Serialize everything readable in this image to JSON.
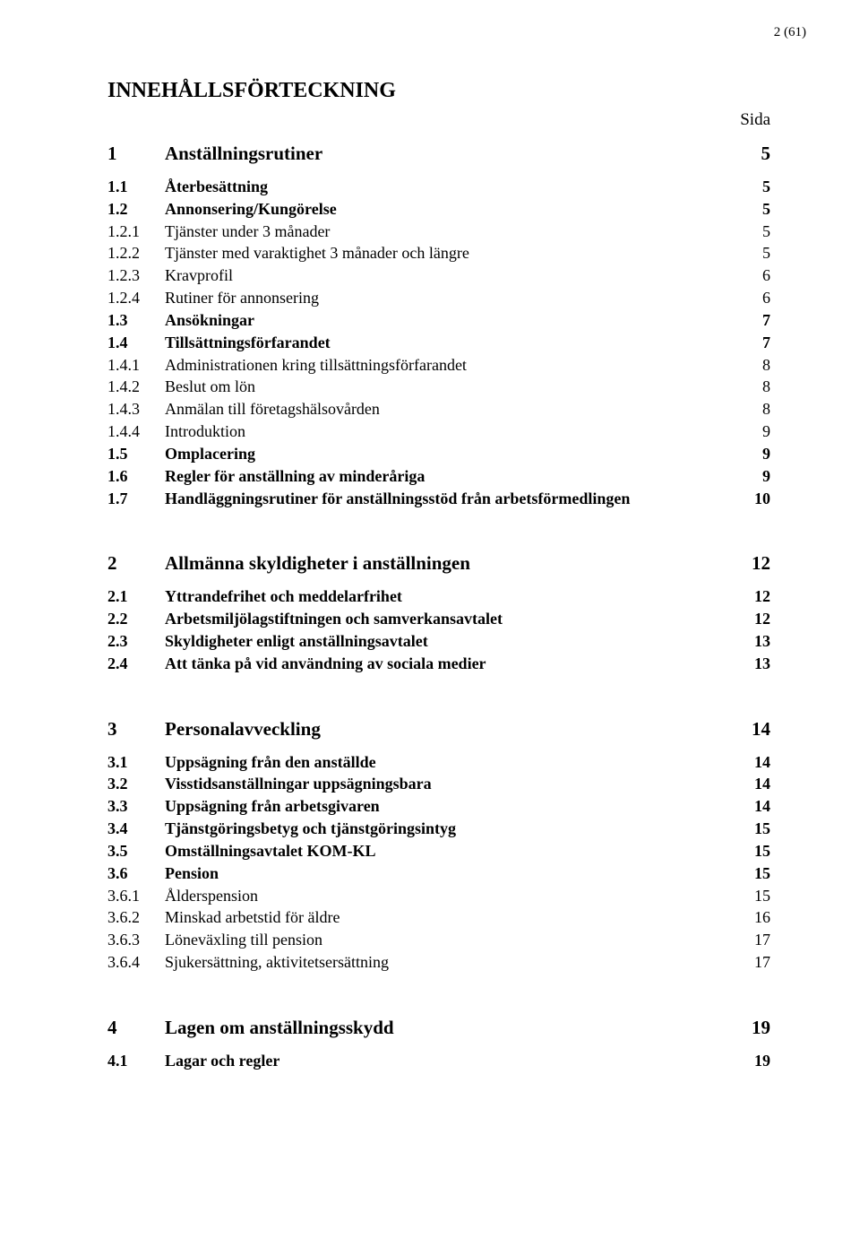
{
  "page_number_label": "2 (61)",
  "doc_title": "INNEHÅLLSFÖRTECKNING",
  "sida_label": "Sida",
  "sections": [
    {
      "head": {
        "num": "1",
        "title": "Anställningsrutiner",
        "page": "5"
      },
      "items": [
        {
          "lvl": 2,
          "num": "1.1",
          "title": "Återbesättning",
          "page": "5"
        },
        {
          "lvl": 2,
          "num": "1.2",
          "title": "Annonsering/Kungörelse",
          "page": "5"
        },
        {
          "lvl": 3,
          "num": "1.2.1",
          "title": "Tjänster under 3 månader",
          "page": "5"
        },
        {
          "lvl": 3,
          "num": "1.2.2",
          "title": "Tjänster med varaktighet 3 månader och längre",
          "page": "5"
        },
        {
          "lvl": 3,
          "num": "1.2.3",
          "title": "Kravprofil",
          "page": "6"
        },
        {
          "lvl": 3,
          "num": "1.2.4",
          "title": "Rutiner för annonsering",
          "page": "6"
        },
        {
          "lvl": 2,
          "num": "1.3",
          "title": "Ansökningar",
          "page": "7"
        },
        {
          "lvl": 2,
          "num": "1.4",
          "title": "Tillsättningsförfarandet",
          "page": "7"
        },
        {
          "lvl": 3,
          "num": "1.4.1",
          "title": "Administrationen kring tillsättningsförfarandet",
          "page": "8"
        },
        {
          "lvl": 3,
          "num": "1.4.2",
          "title": "Beslut om lön",
          "page": "8"
        },
        {
          "lvl": 3,
          "num": "1.4.3",
          "title": "Anmälan till företagshälsovården",
          "page": "8"
        },
        {
          "lvl": 3,
          "num": "1.4.4",
          "title": "Introduktion",
          "page": "9"
        },
        {
          "lvl": 2,
          "num": "1.5",
          "title": "Omplacering",
          "page": "9"
        },
        {
          "lvl": 2,
          "num": "1.6",
          "title": "Regler för anställning av minderåriga",
          "page": "9"
        },
        {
          "lvl": 2,
          "num": "1.7",
          "title": "Handläggningsrutiner för anställningsstöd från arbetsförmedlingen",
          "page": "10"
        }
      ]
    },
    {
      "head": {
        "num": "2",
        "title": "Allmänna skyldigheter i anställningen",
        "page": "12"
      },
      "items": [
        {
          "lvl": 2,
          "num": "2.1",
          "title": "Yttrandefrihet och meddelarfrihet",
          "page": "12"
        },
        {
          "lvl": 2,
          "num": "2.2",
          "title": "Arbetsmiljölagstiftningen och samverkansavtalet",
          "page": "12"
        },
        {
          "lvl": 2,
          "num": "2.3",
          "title": "Skyldigheter enligt anställningsavtalet",
          "page": "13"
        },
        {
          "lvl": 2,
          "num": "2.4",
          "title": "Att tänka på vid användning av sociala medier",
          "page": "13"
        }
      ]
    },
    {
      "head": {
        "num": "3",
        "title": "Personalavveckling",
        "page": "14"
      },
      "items": [
        {
          "lvl": 2,
          "num": "3.1",
          "title": "Uppsägning från den anställde",
          "page": "14"
        },
        {
          "lvl": 2,
          "num": "3.2",
          "title": "Visstidsanställningar uppsägningsbara",
          "page": "14"
        },
        {
          "lvl": 2,
          "num": "3.3",
          "title": "Uppsägning från arbetsgivaren",
          "page": "14"
        },
        {
          "lvl": 2,
          "num": "3.4",
          "title": "Tjänstgöringsbetyg och tjänstgöringsintyg",
          "page": "15"
        },
        {
          "lvl": 2,
          "num": "3.5",
          "title": "Omställningsavtalet KOM-KL",
          "page": "15"
        },
        {
          "lvl": 2,
          "num": "3.6",
          "title": "Pension",
          "page": "15"
        },
        {
          "lvl": 3,
          "num": "3.6.1",
          "title": "Ålderspension",
          "page": "15"
        },
        {
          "lvl": 3,
          "num": "3.6.2",
          "title": "Minskad arbetstid för äldre",
          "page": "16"
        },
        {
          "lvl": 3,
          "num": "3.6.3",
          "title": "Löneväxling till pension",
          "page": "17"
        },
        {
          "lvl": 3,
          "num": "3.6.4",
          "title": "Sjukersättning, aktivitetsersättning",
          "page": "17"
        }
      ]
    },
    {
      "head": {
        "num": "4",
        "title": "Lagen om anställningsskydd",
        "page": "19"
      },
      "items": [
        {
          "lvl": 2,
          "num": "4.1",
          "title": "Lagar och regler",
          "page": "19"
        }
      ]
    }
  ]
}
